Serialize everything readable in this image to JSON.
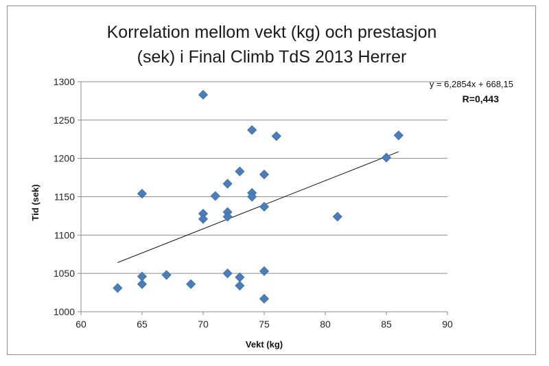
{
  "chart_data": {
    "type": "scatter",
    "title_lines": [
      "Korrelation mellom vekt (kg) och prestasjon",
      "(sek) i Final Climb TdS 2013 Herrer"
    ],
    "xlabel": "Vekt (kg)",
    "ylabel": "Tid (sek)",
    "xlim": [
      60,
      90
    ],
    "ylim": [
      1000,
      1300
    ],
    "xticks": [
      60,
      65,
      70,
      75,
      80,
      85,
      90
    ],
    "yticks": [
      1000,
      1050,
      1100,
      1150,
      1200,
      1250,
      1300
    ],
    "grid": "horizontal",
    "marker_color": "#4a7ebb",
    "trendline": {
      "slope": 6.2854,
      "intercept": 668.15,
      "x_range": [
        63,
        86
      ],
      "equation_label": "y = 6,2854x + 668,15",
      "r_label": "R=0,443"
    },
    "points": [
      {
        "x": 63,
        "y": 1031
      },
      {
        "x": 65,
        "y": 1154
      },
      {
        "x": 65,
        "y": 1046
      },
      {
        "x": 65,
        "y": 1036
      },
      {
        "x": 67,
        "y": 1048
      },
      {
        "x": 69,
        "y": 1036
      },
      {
        "x": 70,
        "y": 1283
      },
      {
        "x": 70,
        "y": 1128
      },
      {
        "x": 70,
        "y": 1121
      },
      {
        "x": 71,
        "y": 1151
      },
      {
        "x": 72,
        "y": 1167
      },
      {
        "x": 72,
        "y": 1130
      },
      {
        "x": 72,
        "y": 1124
      },
      {
        "x": 72,
        "y": 1050
      },
      {
        "x": 73,
        "y": 1183
      },
      {
        "x": 73,
        "y": 1045
      },
      {
        "x": 73,
        "y": 1034
      },
      {
        "x": 74,
        "y": 1237
      },
      {
        "x": 74,
        "y": 1155
      },
      {
        "x": 74,
        "y": 1150
      },
      {
        "x": 75,
        "y": 1179
      },
      {
        "x": 75,
        "y": 1137
      },
      {
        "x": 75,
        "y": 1053
      },
      {
        "x": 75,
        "y": 1017
      },
      {
        "x": 76,
        "y": 1229
      },
      {
        "x": 81,
        "y": 1124
      },
      {
        "x": 85,
        "y": 1201
      },
      {
        "x": 86,
        "y": 1230
      }
    ]
  }
}
